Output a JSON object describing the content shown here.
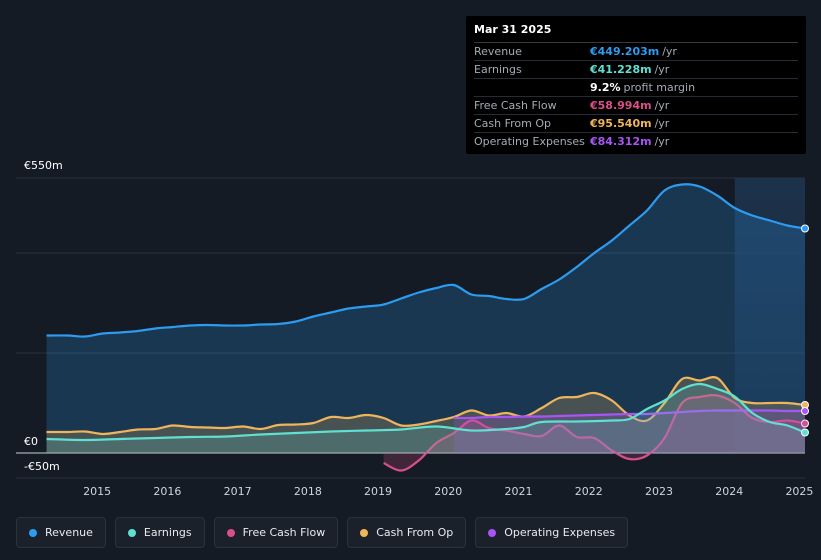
{
  "tooltip": {
    "date": "Mar 31 2025",
    "rows": [
      {
        "label": "Revenue",
        "value": "€449.203m",
        "unit": "/yr",
        "color": "#2d9bf0"
      },
      {
        "label": "Earnings",
        "value": "€41.228m",
        "unit": "/yr",
        "color": "#5fe0d0"
      },
      {
        "label": "",
        "value": "9.2%",
        "unit": "profit margin",
        "color": "#ffffff"
      },
      {
        "label": "Free Cash Flow",
        "value": "€58.994m",
        "unit": "/yr",
        "color": "#d94f8a"
      },
      {
        "label": "Cash From Op",
        "value": "€95.540m",
        "unit": "/yr",
        "color": "#f0b55b"
      },
      {
        "label": "Operating Expenses",
        "value": "€84.312m",
        "unit": "/yr",
        "color": "#a855f7"
      }
    ]
  },
  "legend": [
    {
      "label": "Revenue",
      "color": "#2d9bf0"
    },
    {
      "label": "Earnings",
      "color": "#5fe0d0"
    },
    {
      "label": "Free Cash Flow",
      "color": "#d94f8a"
    },
    {
      "label": "Cash From Op",
      "color": "#f0b55b"
    },
    {
      "label": "Operating Expenses",
      "color": "#a855f7"
    }
  ],
  "chart_data": {
    "type": "area",
    "title": "",
    "xlabel": "",
    "ylabel": "",
    "xlim": [
      2014.4,
      2025.25
    ],
    "ylim": [
      -50,
      550
    ],
    "y_tick_labels": [
      {
        "value": 550,
        "label": "€550m"
      },
      {
        "value": 0,
        "label": "€0"
      },
      {
        "value": -50,
        "label": "-€50m"
      }
    ],
    "x_ticks": [
      {
        "value": 2015,
        "label": "2015"
      },
      {
        "value": 2016,
        "label": "2016"
      },
      {
        "value": 2017,
        "label": "2017"
      },
      {
        "value": 2018,
        "label": "2018"
      },
      {
        "value": 2019,
        "label": "2019"
      },
      {
        "value": 2020,
        "label": "2020"
      },
      {
        "value": 2021,
        "label": "2021"
      },
      {
        "value": 2022,
        "label": "2022"
      },
      {
        "value": 2023,
        "label": "2023"
      },
      {
        "value": 2024,
        "label": "2024"
      },
      {
        "value": 2025,
        "label": "2025"
      }
    ],
    "gridlines": [
      550,
      400,
      200,
      0
    ],
    "highlight_from": 2024.25,
    "series": [
      {
        "name": "Revenue",
        "color": "#2d9bf0",
        "fill": true,
        "x": [
          2014.45,
          2014.75,
          2015.0,
          2015.25,
          2015.5,
          2015.75,
          2016.0,
          2016.25,
          2016.5,
          2016.75,
          2017.0,
          2017.25,
          2017.5,
          2017.75,
          2018.0,
          2018.25,
          2018.5,
          2018.75,
          2019.0,
          2019.25,
          2019.5,
          2019.75,
          2020.0,
          2020.25,
          2020.5,
          2020.75,
          2021.0,
          2021.25,
          2021.5,
          2021.75,
          2022.0,
          2022.25,
          2022.5,
          2022.75,
          2023.0,
          2023.25,
          2023.5,
          2023.75,
          2024.0,
          2024.25,
          2024.5,
          2024.75,
          2025.0,
          2025.25
        ],
        "y": [
          235,
          235,
          233,
          239,
          241,
          244,
          249,
          252,
          255,
          256,
          255,
          255,
          257,
          258,
          263,
          273,
          281,
          289,
          293,
          297,
          309,
          321,
          330,
          336,
          317,
          314,
          308,
          308,
          328,
          347,
          372,
          400,
          425,
          455,
          485,
          525,
          537,
          533,
          515,
          490,
          475,
          465,
          455,
          449
        ]
      },
      {
        "name": "Earnings",
        "color": "#5fe0d0",
        "fill": true,
        "x": [
          2014.45,
          2015.0,
          2015.5,
          2016.0,
          2016.5,
          2017.0,
          2017.5,
          2018.0,
          2018.5,
          2019.0,
          2019.5,
          2020.0,
          2020.5,
          2021.0,
          2021.25,
          2021.5,
          2022.0,
          2022.5,
          2022.75,
          2023.0,
          2023.25,
          2023.5,
          2023.75,
          2024.0,
          2024.25,
          2024.5,
          2024.75,
          2025.0,
          2025.25
        ],
        "y": [
          28,
          26,
          28,
          30,
          32,
          33,
          37,
          40,
          43,
          45,
          47,
          53,
          45,
          48,
          52,
          62,
          63,
          65,
          68,
          88,
          105,
          128,
          138,
          128,
          113,
          80,
          62,
          55,
          41
        ]
      },
      {
        "name": "Free Cash Flow",
        "color": "#d94f8a",
        "fill": true,
        "x": [
          2019.25,
          2019.5,
          2019.75,
          2020.0,
          2020.25,
          2020.5,
          2020.75,
          2021.0,
          2021.25,
          2021.5,
          2021.75,
          2022.0,
          2022.25,
          2022.5,
          2022.75,
          2023.0,
          2023.25,
          2023.5,
          2023.75,
          2024.0,
          2024.25,
          2024.5,
          2024.75,
          2025.0,
          2025.25
        ],
        "y": [
          -20,
          -35,
          -15,
          20,
          40,
          65,
          50,
          45,
          38,
          34,
          55,
          32,
          30,
          5,
          -12,
          -5,
          30,
          100,
          112,
          115,
          100,
          70,
          62,
          65,
          59
        ]
      },
      {
        "name": "Cash From Op",
        "color": "#f0b55b",
        "fill": true,
        "x": [
          2014.45,
          2014.75,
          2015.0,
          2015.25,
          2015.5,
          2015.75,
          2016.0,
          2016.25,
          2016.5,
          2016.75,
          2017.0,
          2017.25,
          2017.5,
          2017.75,
          2018.0,
          2018.25,
          2018.5,
          2018.75,
          2019.0,
          2019.25,
          2019.5,
          2019.75,
          2020.0,
          2020.25,
          2020.5,
          2020.75,
          2021.0,
          2021.25,
          2021.5,
          2021.75,
          2022.0,
          2022.25,
          2022.5,
          2022.75,
          2023.0,
          2023.25,
          2023.5,
          2023.75,
          2024.0,
          2024.25,
          2024.5,
          2024.75,
          2025.0,
          2025.25
        ],
        "y": [
          42,
          42,
          43,
          38,
          42,
          47,
          48,
          55,
          52,
          51,
          50,
          53,
          48,
          56,
          57,
          60,
          72,
          70,
          76,
          70,
          55,
          57,
          64,
          72,
          85,
          75,
          80,
          73,
          90,
          110,
          112,
          120,
          105,
          75,
          65,
          100,
          148,
          145,
          150,
          110,
          100,
          100,
          100,
          96
        ]
      },
      {
        "name": "Operating Expenses",
        "color": "#a855f7",
        "fill": true,
        "x": [
          2020.25,
          2020.5,
          2020.75,
          2021.0,
          2021.25,
          2021.5,
          2021.75,
          2022.0,
          2022.25,
          2022.5,
          2022.75,
          2023.0,
          2023.25,
          2023.5,
          2023.75,
          2024.0,
          2024.25,
          2024.5,
          2024.75,
          2025.0,
          2025.25
        ],
        "y": [
          70,
          70,
          72,
          72,
          73,
          73,
          74,
          75,
          76,
          77,
          78,
          78,
          80,
          82,
          84,
          85,
          85,
          85,
          85,
          84,
          84
        ]
      }
    ]
  }
}
